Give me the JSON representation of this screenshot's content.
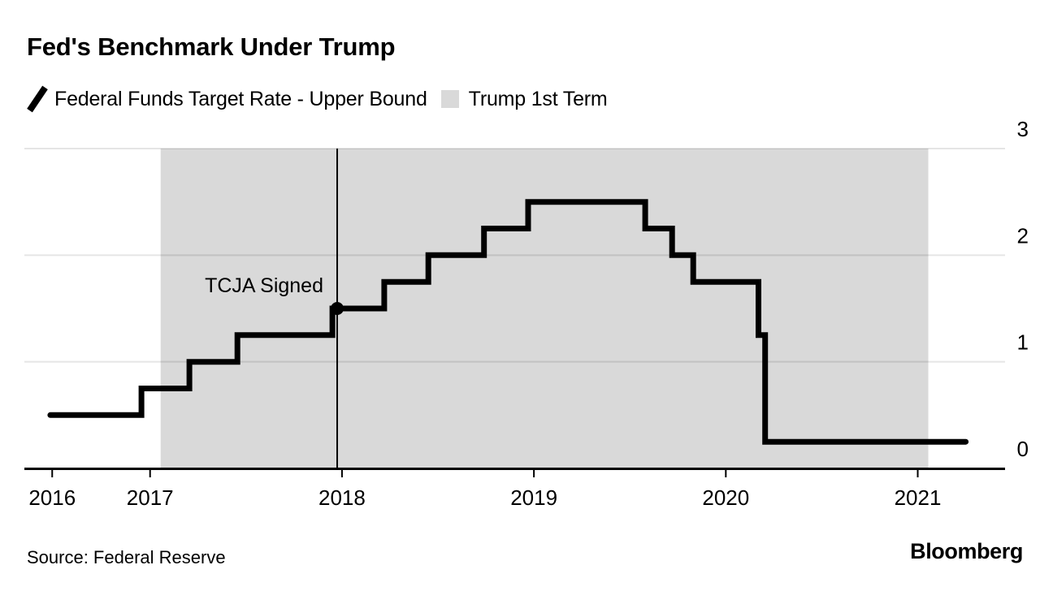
{
  "header": {
    "title": "Fed's Benchmark Under Trump",
    "legend": [
      {
        "type": "line",
        "label": "Federal Funds Target Rate - Upper Bound",
        "color": "#000000"
      },
      {
        "type": "box",
        "label": "Trump 1st Term",
        "color": "#d9d9d9"
      }
    ]
  },
  "footer": {
    "source": "Source: Federal Reserve",
    "brand": "Bloomberg"
  },
  "colors": {
    "line": "#000000",
    "band": "#d9d9d9",
    "grid": "rgba(0,0,0,0.10)",
    "axis": "#000000",
    "text": "#000000"
  },
  "chart_data": {
    "type": "line",
    "subtype": "step",
    "title": "Fed's Benchmark Under Trump",
    "xlabel": "",
    "ylabel": "",
    "x_unit": "decimal-year",
    "y_unit": "percent",
    "series": [
      {
        "name": "Federal Funds Target Rate - Upper Bound",
        "color": "#000000",
        "steps": [
          {
            "x": 2016.48,
            "y": 0.5
          },
          {
            "x": 2016.955,
            "y": 0.75
          },
          {
            "x": 2017.205,
            "y": 1.0
          },
          {
            "x": 2017.455,
            "y": 1.25
          },
          {
            "x": 2017.95,
            "y": 1.5
          },
          {
            "x": 2018.22,
            "y": 1.75
          },
          {
            "x": 2018.45,
            "y": 2.0
          },
          {
            "x": 2018.74,
            "y": 2.25
          },
          {
            "x": 2018.97,
            "y": 2.5
          },
          {
            "x": 2019.58,
            "y": 2.25
          },
          {
            "x": 2019.72,
            "y": 2.0
          },
          {
            "x": 2019.83,
            "y": 1.75
          },
          {
            "x": 2020.17,
            "y": 1.25
          },
          {
            "x": 2020.205,
            "y": 0.25
          }
        ],
        "x_end": 2021.25
      }
    ],
    "band": {
      "label": "Trump 1st Term",
      "x_from": 2017.055,
      "x_to": 2021.055,
      "color": "#d9d9d9"
    },
    "annotation": {
      "label": "TCJA Signed",
      "x": 2017.975,
      "y": 1.5
    },
    "x_axis": {
      "min": 2016.345,
      "max": 2021.455,
      "ticks": [
        {
          "label": "2016",
          "x": 2016.49
        },
        {
          "label": "2017",
          "x": 2017
        },
        {
          "label": "2018",
          "x": 2018
        },
        {
          "label": "2019",
          "x": 2019
        },
        {
          "label": "2020",
          "x": 2020
        },
        {
          "label": "2021",
          "x": 2021
        }
      ]
    },
    "y_axis": {
      "min": 0,
      "max": 3,
      "side": "right",
      "grid": true,
      "ticks": [
        {
          "label": "0",
          "value": 0
        },
        {
          "label": "1",
          "value": 1
        },
        {
          "label": "2",
          "value": 2
        },
        {
          "label": "3",
          "value": 3
        }
      ]
    }
  }
}
